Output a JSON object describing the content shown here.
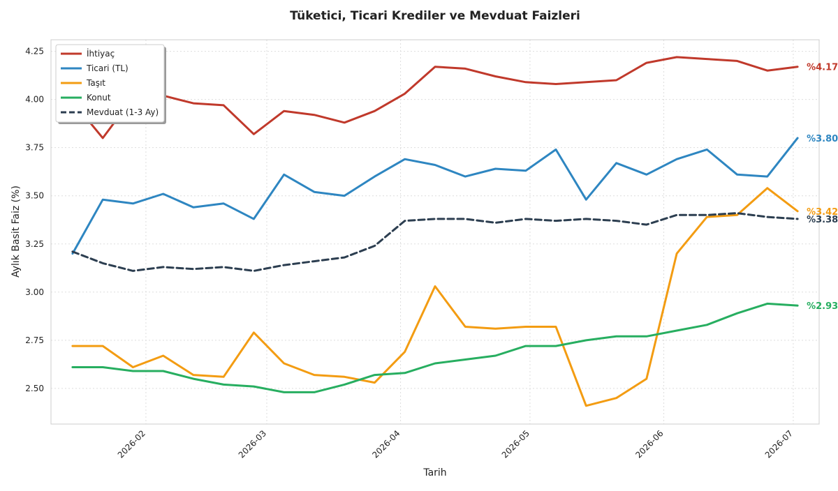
{
  "chart_data": {
    "type": "line",
    "title": "Tüketici, Ticari Krediler ve Mevduat Faizleri",
    "xlabel": "Tarih",
    "ylabel": "Aylık Basit Faiz (%)",
    "x": [
      "2026-01-15",
      "2026-01-22",
      "2026-01-29",
      "2026-02-05",
      "2026-02-12",
      "2026-02-19",
      "2026-02-26",
      "2026-03-05",
      "2026-03-12",
      "2026-03-19",
      "2026-03-26",
      "2026-04-02",
      "2026-04-09",
      "2026-04-16",
      "2026-04-23",
      "2026-04-30",
      "2026-05-07",
      "2026-05-14",
      "2026-05-21",
      "2026-05-28",
      "2026-06-04",
      "2026-06-11",
      "2026-06-18",
      "2026-06-25",
      "2026-07-02"
    ],
    "xlim": [
      "2026-01-10",
      "2026-07-07"
    ],
    "x_ticks": [
      "2026-02-01",
      "2026-03-01",
      "2026-04-01",
      "2026-05-01",
      "2026-06-01",
      "2026-07-01"
    ],
    "x_tick_labels": [
      "2026-02",
      "2026-03",
      "2026-04",
      "2026-05",
      "2026-06",
      "2026-07"
    ],
    "ylim": [
      2.315,
      4.31
    ],
    "y_ticks": [
      2.5,
      2.75,
      3.0,
      3.25,
      3.5,
      3.75,
      4.0,
      4.25
    ],
    "y_tick_labels": [
      "2.50",
      "2.75",
      "3.00",
      "3.25",
      "3.50",
      "3.75",
      "4.00",
      "4.25"
    ],
    "grid": true,
    "legend_position": "top-left",
    "series": [
      {
        "name": "İhtiyaç",
        "color": "#c0392b",
        "dash": "solid",
        "end_label": "%4.17",
        "values": [
          3.99,
          3.8,
          4.01,
          4.02,
          3.98,
          3.97,
          3.82,
          3.94,
          3.92,
          3.88,
          3.94,
          4.03,
          4.17,
          4.16,
          4.12,
          4.09,
          4.08,
          4.09,
          4.1,
          4.19,
          4.22,
          4.21,
          4.2,
          4.15,
          4.17
        ]
      },
      {
        "name": "Ticari (TL)",
        "color": "#2e86c1",
        "dash": "solid",
        "end_label": "%3.80",
        "values": [
          3.2,
          3.48,
          3.46,
          3.51,
          3.44,
          3.46,
          3.38,
          3.61,
          3.52,
          3.5,
          3.6,
          3.69,
          3.66,
          3.6,
          3.64,
          3.63,
          3.74,
          3.48,
          3.67,
          3.61,
          3.69,
          3.74,
          3.61,
          3.6,
          3.8
        ]
      },
      {
        "name": "Taşıt",
        "color": "#f39c12",
        "dash": "solid",
        "end_label": "%3.42",
        "values": [
          2.72,
          2.72,
          2.61,
          2.67,
          2.57,
          2.56,
          2.79,
          2.63,
          2.57,
          2.56,
          2.53,
          2.69,
          3.03,
          2.82,
          2.81,
          2.82,
          2.82,
          2.41,
          2.45,
          2.55,
          3.2,
          3.39,
          3.4,
          3.54,
          3.42
        ]
      },
      {
        "name": "Konut",
        "color": "#27ae60",
        "dash": "solid",
        "end_label": "%2.93",
        "values": [
          2.61,
          2.61,
          2.59,
          2.59,
          2.55,
          2.52,
          2.51,
          2.48,
          2.48,
          2.52,
          2.57,
          2.58,
          2.63,
          2.65,
          2.67,
          2.72,
          2.72,
          2.75,
          2.77,
          2.77,
          2.8,
          2.83,
          2.89,
          2.94,
          2.93
        ]
      },
      {
        "name": "Mevduat (1-3 Ay)",
        "color": "#2c3e50",
        "dash": "dashed",
        "end_label": "%3.38",
        "values": [
          3.21,
          3.15,
          3.11,
          3.13,
          3.12,
          3.13,
          3.11,
          3.14,
          3.16,
          3.18,
          3.24,
          3.37,
          3.38,
          3.38,
          3.36,
          3.38,
          3.37,
          3.38,
          3.37,
          3.35,
          3.4,
          3.4,
          3.41,
          3.39,
          3.38
        ]
      }
    ]
  }
}
